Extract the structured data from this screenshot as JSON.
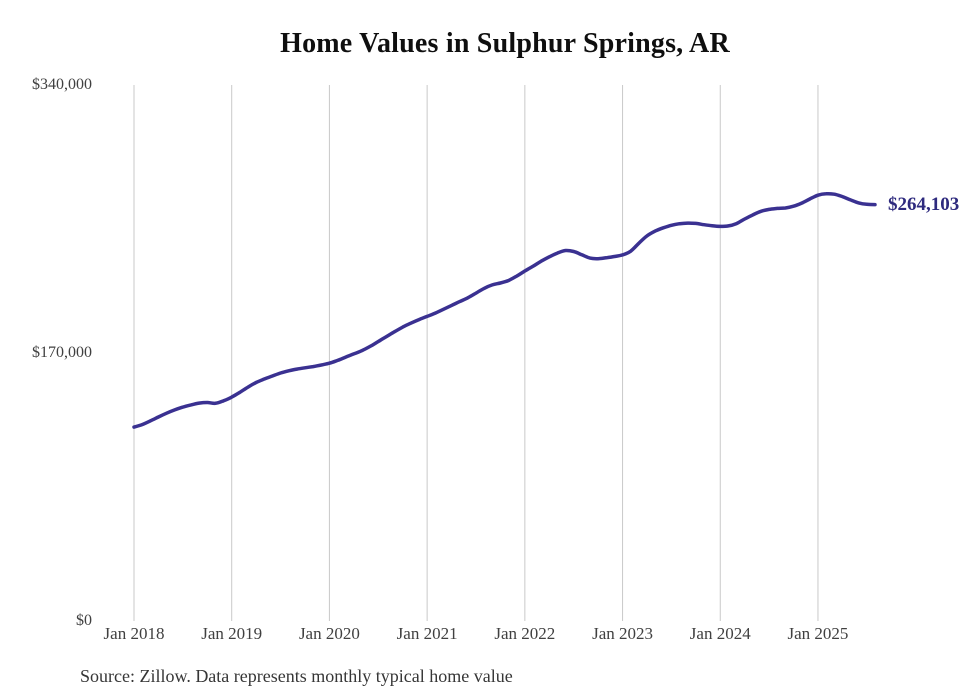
{
  "page": {
    "title": "Home Values in Sulphur Springs, AR",
    "source_note": "Source: Zillow. Data represents monthly typical home value"
  },
  "chart_data": {
    "type": "line",
    "title": "Home Values in Sulphur Springs, AR",
    "subtitle": "",
    "xlabel": "",
    "ylabel": "",
    "series_name": "Monthly typical home value",
    "start_month": "Jan 2018",
    "end_month": "Aug 2025",
    "frequency": "monthly",
    "x_ticks": [
      "Jan 2018",
      "Jan 2019",
      "Jan 2020",
      "Jan 2021",
      "Jan 2022",
      "Jan 2023",
      "Jan 2024",
      "Jan 2025"
    ],
    "y_ticks": [
      {
        "value": 0,
        "label": "$0"
      },
      {
        "value": 170000,
        "label": "$170,000"
      },
      {
        "value": 340000,
        "label": "$340,000"
      }
    ],
    "ylim": [
      0,
      340000
    ],
    "grid": "vertical-only",
    "legend": "none",
    "line_color": "#3a3191",
    "end_label_color": "#2e2a7e",
    "grid_color": "#c9c9c9",
    "end_label": "$264,103",
    "end_value": 264103,
    "values": [
      123000,
      124600,
      126900,
      129400,
      131800,
      133900,
      135700,
      137100,
      138200,
      138600,
      138100,
      139700,
      142000,
      145100,
      148400,
      151300,
      153500,
      155400,
      157300,
      158700,
      159800,
      160600,
      161400,
      162400,
      163500,
      165300,
      167400,
      169400,
      171500,
      174200,
      177300,
      180400,
      183500,
      186400,
      188900,
      191200,
      193200,
      195300,
      197700,
      200200,
      202600,
      205000,
      208000,
      211000,
      213200,
      214400,
      216000,
      218800,
      222000,
      225000,
      228200,
      231000,
      233400,
      235000,
      234400,
      232300,
      230200,
      229800,
      230400,
      231200,
      232200,
      234600,
      239600,
      244300,
      247300,
      249400,
      251000,
      252000,
      252400,
      252200,
      251400,
      250700,
      250300,
      250600,
      252100,
      255000,
      257600,
      259900,
      261100,
      261700,
      262000,
      263100,
      265100,
      267700,
      270100,
      271000,
      270700,
      269200,
      267100,
      265200,
      264300,
      264103
    ]
  }
}
